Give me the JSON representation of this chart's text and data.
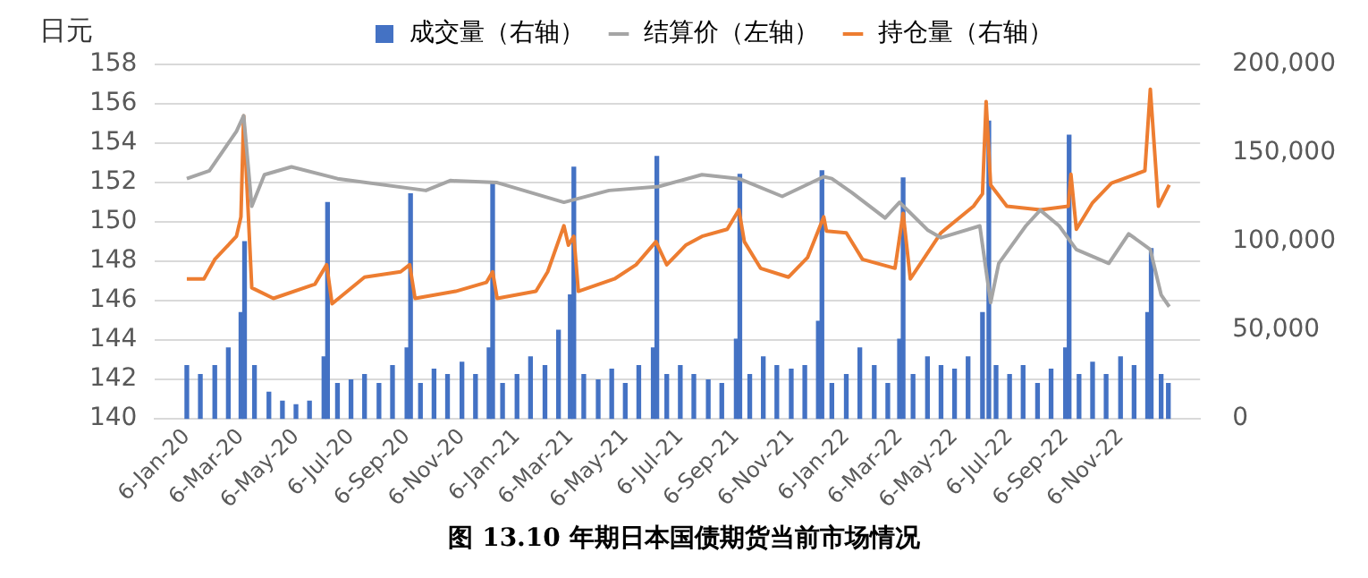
{
  "chart_data": {
    "type": "line",
    "title": "图 13.10 年期日本国债期货当前市场情况",
    "ylabel": "日元",
    "xlim": [
      "2020-01-03",
      "2023-01-01"
    ],
    "xticks": [
      {
        "value": "2020-01-06",
        "label": "6-Jan-20"
      },
      {
        "value": "2020-03-06",
        "label": "6-Mar-20"
      },
      {
        "value": "2020-05-06",
        "label": "6-May-20"
      },
      {
        "value": "2020-07-06",
        "label": "6-Jul-20"
      },
      {
        "value": "2020-09-06",
        "label": "6-Sep-20"
      },
      {
        "value": "2020-11-06",
        "label": "6-Nov-20"
      },
      {
        "value": "2021-01-06",
        "label": "6-Jan-21"
      },
      {
        "value": "2021-03-06",
        "label": "6-Mar-21"
      },
      {
        "value": "2021-05-06",
        "label": "6-May-21"
      },
      {
        "value": "2021-07-06",
        "label": "6-Jul-21"
      },
      {
        "value": "2021-09-06",
        "label": "6-Sep-21"
      },
      {
        "value": "2021-11-06",
        "label": "6-Nov-21"
      },
      {
        "value": "2022-01-06",
        "label": "6-Jan-22"
      },
      {
        "value": "2022-03-06",
        "label": "6-Mar-22"
      },
      {
        "value": "2022-05-06",
        "label": "6-May-22"
      },
      {
        "value": "2022-07-06",
        "label": "6-Jul-22"
      },
      {
        "value": "2022-09-06",
        "label": "6-Sep-22"
      },
      {
        "value": "2022-11-06",
        "label": "6-Nov-22"
      }
    ],
    "ylim": [
      140,
      158
    ],
    "yticks": [
      140,
      142,
      144,
      146,
      148,
      150,
      152,
      154,
      156,
      158
    ],
    "y2lim": [
      0,
      200000
    ],
    "y2ticks": [
      0,
      {
        "value": 50000,
        "label": "50,000"
      },
      {
        "value": 100000,
        "label": "100,000"
      },
      {
        "value": 150000,
        "label": "150,000"
      },
      {
        "value": 200000,
        "label": "200,000"
      }
    ],
    "grid": "y",
    "legend": "top",
    "marker": "none",
    "series": [
      {
        "name": "成交量（右轴）",
        "type": "bar",
        "axis": "y2",
        "color": "#4472c4",
        "x": [
          "2020-01-06",
          "2020-01-21",
          "2020-02-06",
          "2020-02-21",
          "2020-03-06",
          "2020-03-10",
          "2020-03-21",
          "2020-04-06",
          "2020-04-21",
          "2020-05-06",
          "2020-05-21",
          "2020-06-06",
          "2020-06-10",
          "2020-06-21",
          "2020-07-06",
          "2020-07-21",
          "2020-08-06",
          "2020-08-21",
          "2020-09-06",
          "2020-09-10",
          "2020-09-21",
          "2020-10-06",
          "2020-10-21",
          "2020-11-06",
          "2020-11-21",
          "2020-12-06",
          "2020-12-10",
          "2020-12-21",
          "2021-01-06",
          "2021-01-21",
          "2021-02-06",
          "2021-02-21",
          "2021-03-06",
          "2021-03-10",
          "2021-03-21",
          "2021-04-06",
          "2021-04-21",
          "2021-05-06",
          "2021-05-21",
          "2021-06-06",
          "2021-06-10",
          "2021-06-21",
          "2021-07-06",
          "2021-07-21",
          "2021-08-06",
          "2021-08-21",
          "2021-09-06",
          "2021-09-10",
          "2021-09-21",
          "2021-10-06",
          "2021-10-21",
          "2021-11-06",
          "2021-11-21",
          "2021-12-06",
          "2021-12-10",
          "2021-12-21",
          "2022-01-06",
          "2022-01-21",
          "2022-02-06",
          "2022-02-21",
          "2022-03-06",
          "2022-03-10",
          "2022-03-21",
          "2022-04-06",
          "2022-04-21",
          "2022-05-06",
          "2022-05-21",
          "2022-06-06",
          "2022-06-13",
          "2022-06-21",
          "2022-07-06",
          "2022-07-21",
          "2022-08-06",
          "2022-08-21",
          "2022-09-06",
          "2022-09-10",
          "2022-09-21",
          "2022-10-06",
          "2022-10-21",
          "2022-11-06",
          "2022-11-21",
          "2022-12-06",
          "2022-12-10",
          "2022-12-21",
          "2022-12-29"
        ],
        "values": [
          30000,
          25000,
          30000,
          40000,
          60000,
          100000,
          30000,
          15000,
          10000,
          8000,
          10000,
          35000,
          122000,
          20000,
          22000,
          25000,
          20000,
          30000,
          40000,
          127000,
          20000,
          28000,
          25000,
          32000,
          25000,
          40000,
          133000,
          20000,
          25000,
          35000,
          30000,
          50000,
          70000,
          142000,
          25000,
          22000,
          28000,
          20000,
          30000,
          40000,
          148000,
          25000,
          30000,
          25000,
          22000,
          20000,
          45000,
          138000,
          25000,
          35000,
          30000,
          28000,
          30000,
          55000,
          140000,
          20000,
          25000,
          40000,
          30000,
          20000,
          45000,
          136000,
          25000,
          35000,
          30000,
          28000,
          35000,
          60000,
          168000,
          30000,
          25000,
          30000,
          20000,
          28000,
          40000,
          160000,
          25000,
          32000,
          25000,
          35000,
          30000,
          60000,
          96000,
          25000,
          20000
        ]
      },
      {
        "name": "结算价（左轴）",
        "axis": "y",
        "color": "#a5a5a5",
        "x": [
          "2020-01-06",
          "2020-01-31",
          "2020-03-01",
          "2020-03-09",
          "2020-03-18",
          "2020-04-01",
          "2020-05-01",
          "2020-06-21",
          "2020-09-27",
          "2020-10-24",
          "2020-12-15",
          "2021-02-27",
          "2021-04-18",
          "2021-06-12",
          "2021-07-30",
          "2021-09-09",
          "2021-10-27",
          "2021-12-12",
          "2021-12-21",
          "2022-01-12",
          "2022-02-18",
          "2022-03-06",
          "2022-04-06",
          "2022-04-21",
          "2022-06-03",
          "2022-06-15",
          "2022-06-24",
          "2022-07-24",
          "2022-08-09",
          "2022-08-30",
          "2022-09-18",
          "2022-10-24",
          "2022-11-15",
          "2022-12-09",
          "2022-12-21",
          "2022-12-30"
        ],
        "values": [
          152.2,
          152.6,
          154.6,
          155.4,
          150.8,
          152.4,
          152.8,
          152.2,
          151.6,
          152.1,
          152.0,
          151.0,
          151.6,
          151.8,
          152.4,
          152.2,
          151.3,
          152.3,
          152.2,
          151.5,
          150.2,
          151.0,
          149.6,
          149.2,
          149.8,
          145.9,
          147.9,
          149.8,
          150.6,
          149.8,
          148.6,
          147.9,
          149.4,
          148.6,
          146.3,
          145.7
        ]
      },
      {
        "name": "持仓量（右轴）",
        "axis": "y2",
        "color": "#ed7d31",
        "x": [
          "2020-01-06",
          "2020-01-25",
          "2020-02-06",
          "2020-03-01",
          "2020-03-06",
          "2020-03-09",
          "2020-03-18",
          "2020-04-11",
          "2020-05-27",
          "2020-06-09",
          "2020-06-15",
          "2020-07-21",
          "2020-08-30",
          "2020-09-09",
          "2020-09-15",
          "2020-10-30",
          "2020-12-03",
          "2020-12-10",
          "2020-12-15",
          "2021-01-27",
          "2021-02-09",
          "2021-02-27",
          "2021-03-04",
          "2021-03-10",
          "2021-03-15",
          "2021-04-24",
          "2021-05-18",
          "2021-06-09",
          "2021-06-21",
          "2021-07-12",
          "2021-07-30",
          "2021-08-27",
          "2021-09-09",
          "2021-09-15",
          "2021-10-03",
          "2021-11-03",
          "2021-11-24",
          "2021-12-12",
          "2021-12-15",
          "2022-01-06",
          "2022-01-24",
          "2022-03-01",
          "2022-03-10",
          "2022-03-18",
          "2022-04-21",
          "2022-05-27",
          "2022-06-06",
          "2022-06-10",
          "2022-06-15",
          "2022-07-03",
          "2022-08-09",
          "2022-09-09",
          "2022-09-12",
          "2022-09-18",
          "2022-10-06",
          "2022-10-27",
          "2022-12-03",
          "2022-12-09",
          "2022-12-18",
          "2022-12-30"
        ],
        "values": [
          79000,
          79000,
          90000,
          103000,
          114000,
          171000,
          74000,
          68000,
          76000,
          87000,
          65000,
          80000,
          83000,
          87000,
          68000,
          72000,
          77000,
          83000,
          68000,
          72000,
          83000,
          109000,
          98000,
          103000,
          72000,
          79000,
          87000,
          100000,
          87000,
          98000,
          103000,
          107000,
          118000,
          100000,
          85000,
          80000,
          91000,
          114000,
          106000,
          105000,
          90000,
          85000,
          116000,
          79000,
          105000,
          120000,
          127000,
          179000,
          132000,
          120000,
          118000,
          120000,
          138000,
          107000,
          122000,
          133000,
          140000,
          186000,
          120000,
          132000
        ]
      }
    ]
  }
}
